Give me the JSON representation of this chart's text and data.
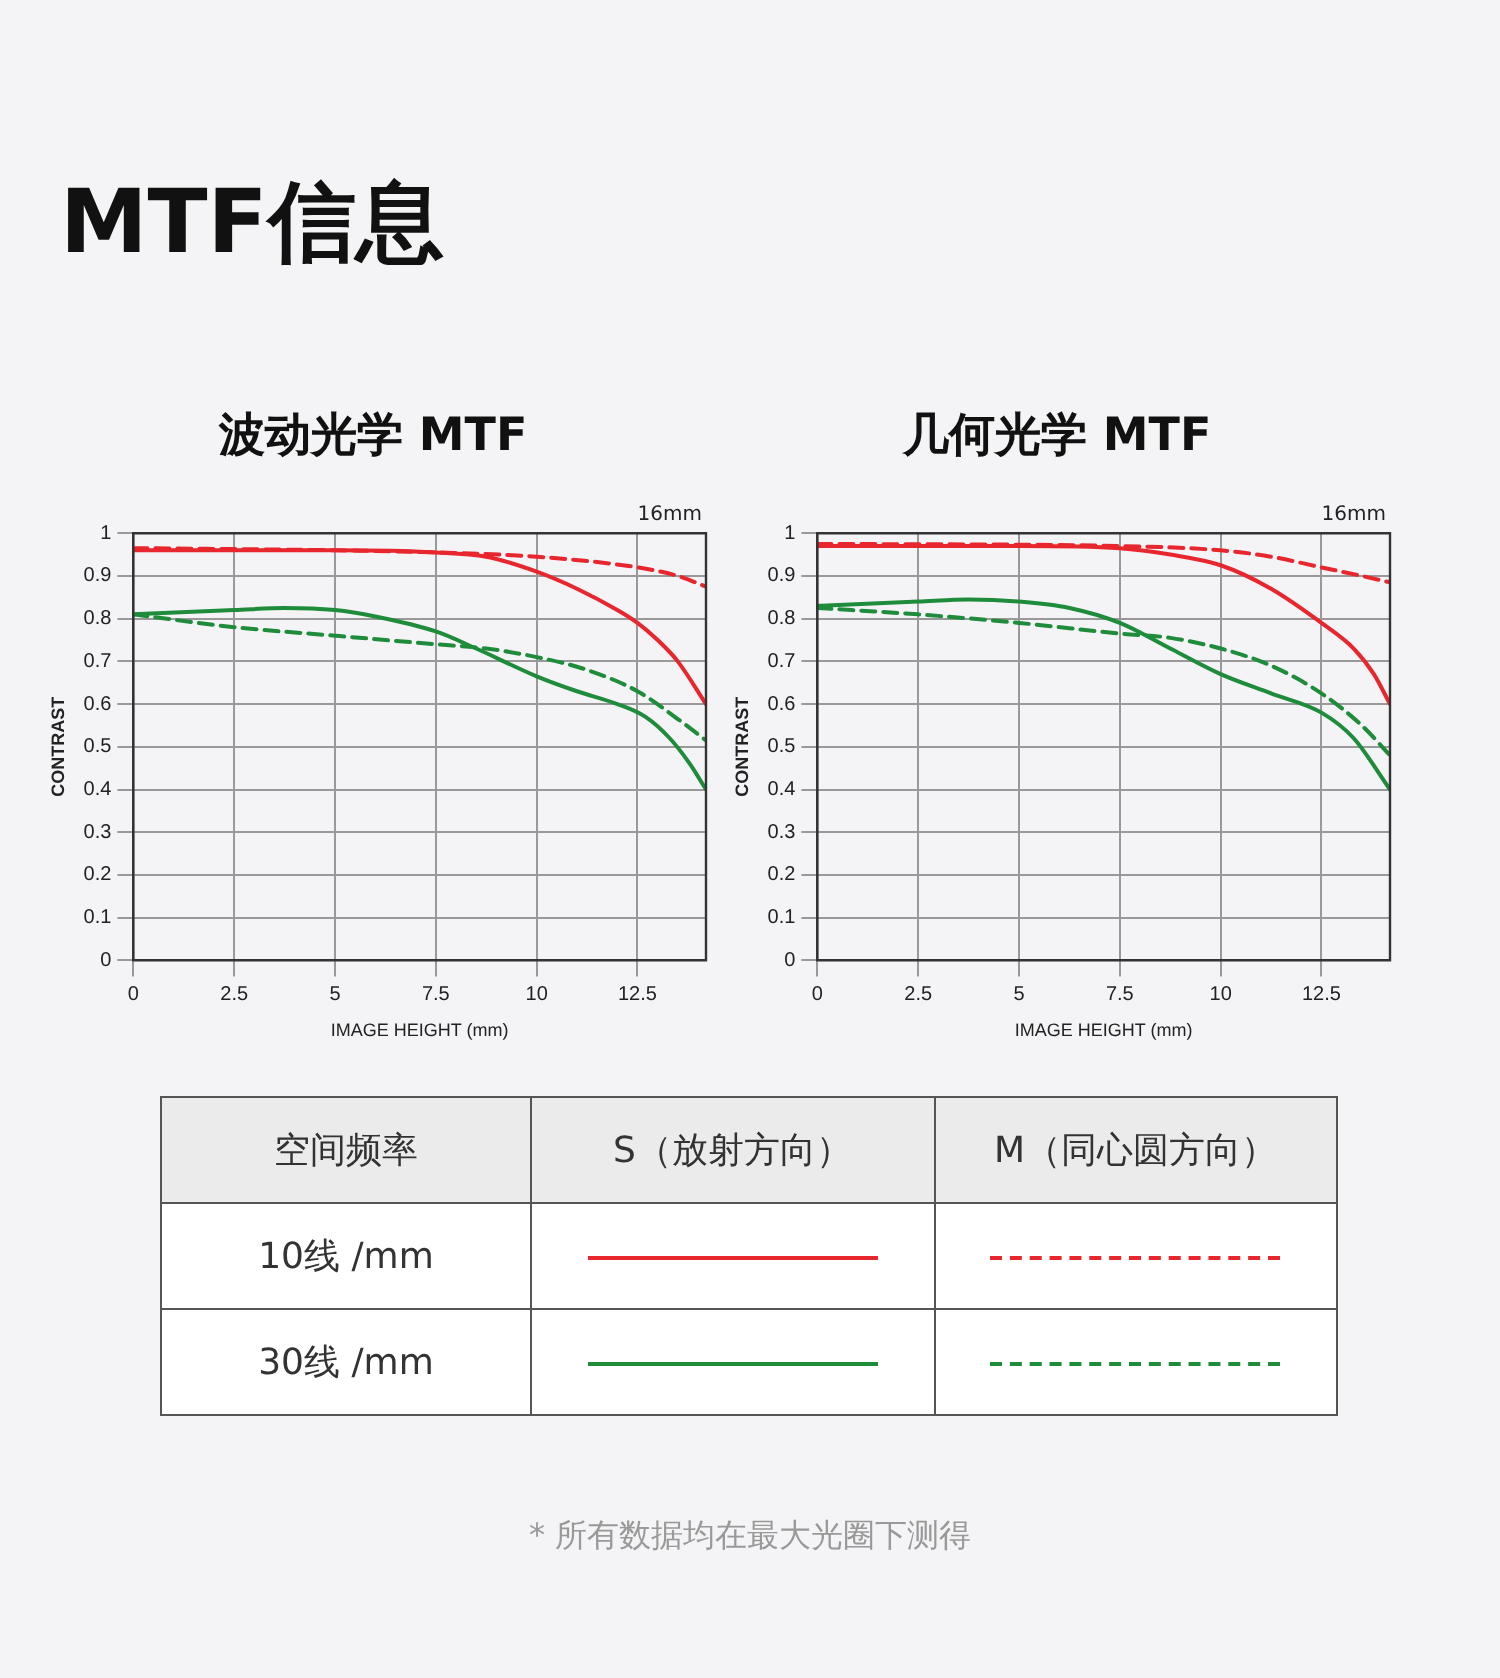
{
  "chart_data": [
    {
      "type": "other",
      "title": "MTF信息"
    },
    {
      "type": "line",
      "title": "波动光学 MTF",
      "xlabel": "IMAGE HEIGHT (mm)",
      "ylabel": "CONTRAST",
      "annotations": [
        "16mm"
      ],
      "xlim": [
        0,
        14.2
      ],
      "ylim": [
        0,
        1
      ],
      "xticks": [
        0,
        2.5,
        5,
        7.5,
        10,
        12.5
      ],
      "yticks": [
        0,
        0.1,
        0.2,
        0.3,
        0.4,
        0.5,
        0.6,
        0.7,
        0.8,
        0.9,
        1
      ],
      "grid": true,
      "legend": false,
      "marker": "none",
      "series": [
        {
          "color": "#e8262e",
          "line_style": "solid",
          "x": [
            0,
            2.5,
            5,
            7.5,
            8.75,
            10,
            11,
            12,
            12.5,
            13,
            13.5,
            14.2
          ],
          "values": [
            0.96,
            0.96,
            0.96,
            0.955,
            0.945,
            0.91,
            0.87,
            0.82,
            0.79,
            0.75,
            0.7,
            0.6
          ]
        },
        {
          "color": "#e8262e",
          "line_style": "dashed",
          "x": [
            0,
            5,
            7.5,
            10,
            12.5,
            13.5,
            14.2
          ],
          "values": [
            0.965,
            0.96,
            0.955,
            0.945,
            0.92,
            0.9,
            0.875
          ]
        },
        {
          "color": "#1e8c3a",
          "line_style": "solid",
          "x": [
            0,
            2.5,
            3.75,
            5,
            6,
            7.5,
            8.5,
            10,
            11,
            12,
            12.7,
            13.3,
            13.8,
            14.2
          ],
          "values": [
            0.81,
            0.82,
            0.825,
            0.82,
            0.805,
            0.77,
            0.73,
            0.665,
            0.63,
            0.6,
            0.57,
            0.52,
            0.46,
            0.4
          ]
        },
        {
          "color": "#1e8c3a",
          "line_style": "dashed",
          "x": [
            0,
            2.5,
            5,
            7.5,
            8.75,
            10,
            11.25,
            12.5,
            13.5,
            14.2
          ],
          "values": [
            0.81,
            0.78,
            0.76,
            0.74,
            0.73,
            0.71,
            0.68,
            0.63,
            0.565,
            0.515
          ]
        }
      ]
    },
    {
      "type": "line",
      "title": "几何光学 MTF",
      "xlabel": "IMAGE HEIGHT (mm)",
      "ylabel": "CONTRAST",
      "annotations": [
        "16mm"
      ],
      "xlim": [
        0,
        14.2
      ],
      "ylim": [
        0,
        1
      ],
      "xticks": [
        0,
        2.5,
        5,
        7.5,
        10,
        12.5
      ],
      "yticks": [
        0,
        0.1,
        0.2,
        0.3,
        0.4,
        0.5,
        0.6,
        0.7,
        0.8,
        0.9,
        1
      ],
      "grid": true,
      "legend": false,
      "marker": "none",
      "series": [
        {
          "color": "#e8262e",
          "line_style": "solid",
          "x": [
            0,
            5,
            7.5,
            8.75,
            10,
            11.25,
            12.5,
            13.3,
            13.8,
            14.2
          ],
          "values": [
            0.97,
            0.97,
            0.965,
            0.95,
            0.925,
            0.87,
            0.79,
            0.73,
            0.67,
            0.6
          ]
        },
        {
          "color": "#e8262e",
          "line_style": "dashed",
          "x": [
            0,
            7.5,
            10,
            11.25,
            12.5,
            13.5,
            14.2
          ],
          "values": [
            0.975,
            0.97,
            0.96,
            0.945,
            0.92,
            0.9,
            0.885
          ]
        },
        {
          "color": "#1e8c3a",
          "line_style": "solid",
          "x": [
            0,
            2.5,
            3.75,
            5,
            6.25,
            7.5,
            8.75,
            10,
            11.25,
            12.5,
            13.3,
            14.2
          ],
          "values": [
            0.83,
            0.84,
            0.845,
            0.84,
            0.825,
            0.79,
            0.73,
            0.67,
            0.625,
            0.58,
            0.52,
            0.4
          ]
        },
        {
          "color": "#1e8c3a",
          "line_style": "dashed",
          "x": [
            0,
            2.5,
            5,
            7.5,
            8.75,
            10,
            11.25,
            12.5,
            13.5,
            14.2
          ],
          "values": [
            0.825,
            0.81,
            0.79,
            0.765,
            0.755,
            0.73,
            0.69,
            0.625,
            0.55,
            0.48
          ]
        }
      ]
    },
    {
      "type": "other",
      "legend_title": "空间频率",
      "categories": [
        "S（放射方向）",
        "M（同心圆方向）"
      ],
      "y_categories": [
        "10线 /mm",
        "30线 /mm"
      ],
      "annotations": [
        "* 所有数据均在最大光圈下测得"
      ]
    }
  ]
}
